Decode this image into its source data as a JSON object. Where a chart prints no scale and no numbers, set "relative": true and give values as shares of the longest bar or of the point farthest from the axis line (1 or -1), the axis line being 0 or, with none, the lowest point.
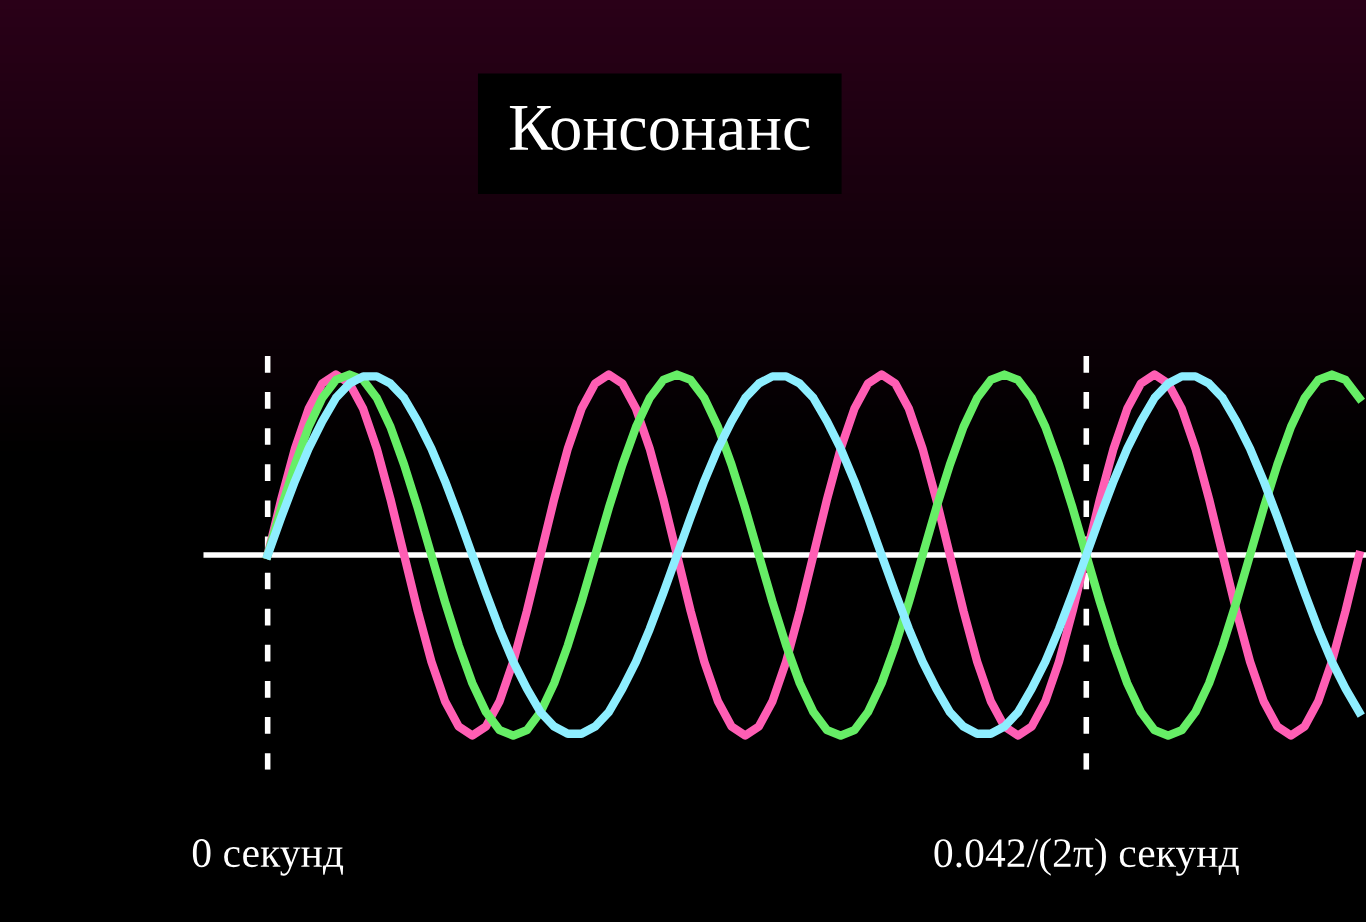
{
  "chart_data": {
    "type": "line",
    "title": "Консонанс",
    "relative": true,
    "grid": "x",
    "marker": "none",
    "line_style": "solid",
    "categories": [
      null,
      null,
      null,
      null,
      "0 секунд",
      null,
      null,
      null,
      null,
      null,
      null,
      null,
      null,
      null,
      null,
      null,
      null,
      null,
      null,
      null,
      null,
      null,
      null,
      null,
      null,
      null,
      null,
      null,
      null,
      null,
      null,
      null,
      null,
      null,
      null,
      null,
      null,
      null,
      null,
      null,
      null,
      null,
      null,
      null,
      null,
      null,
      null,
      null,
      null,
      null,
      null,
      null,
      null,
      null,
      null,
      null,
      null,
      null,
      null,
      null,
      null,
      null,
      null,
      null,
      "0.042/(2π) секунд",
      null,
      null,
      null,
      null,
      null,
      null,
      null,
      null,
      null,
      null,
      null,
      null,
      null,
      null,
      null,
      null,
      null,
      null,
      null,
      null
    ],
    "series": [
      {
        "color": "#ff5eb4",
        "values": [
          null,
          null,
          null,
          null,
          0,
          0.31,
          0.59,
          0.81,
          0.95,
          1,
          0.95,
          0.81,
          0.59,
          0.31,
          0,
          -0.31,
          -0.59,
          -0.81,
          -0.95,
          -1,
          -0.95,
          -0.81,
          -0.59,
          -0.31,
          0,
          0.31,
          0.59,
          0.81,
          0.95,
          1,
          0.95,
          0.81,
          0.59,
          0.31,
          0,
          -0.31,
          -0.59,
          -0.81,
          -0.95,
          -1,
          -0.95,
          -0.81,
          -0.59,
          -0.31,
          0,
          0.31,
          0.59,
          0.81,
          0.95,
          1,
          0.95,
          0.81,
          0.59,
          0.31,
          0,
          -0.31,
          -0.59,
          -0.81,
          -0.95,
          -1,
          -0.95,
          -0.81,
          -0.59,
          -0.31,
          0,
          0.31,
          0.59,
          0.81,
          0.95,
          1,
          0.95,
          0.81,
          0.59,
          0.31,
          0,
          -0.31,
          -0.59,
          -0.81,
          -0.95,
          -1,
          -0.95,
          -0.81,
          -0.59,
          -0.31,
          0
        ]
      },
      {
        "color": "#66ee66",
        "values": [
          null,
          null,
          null,
          null,
          0,
          0.26,
          0.5,
          0.71,
          0.87,
          0.97,
          1,
          0.97,
          0.87,
          0.71,
          0.5,
          0.26,
          0,
          -0.26,
          -0.5,
          -0.71,
          -0.87,
          -0.97,
          -1,
          -0.97,
          -0.87,
          -0.71,
          -0.5,
          -0.26,
          0,
          0.26,
          0.5,
          0.71,
          0.87,
          0.97,
          1,
          0.97,
          0.87,
          0.71,
          0.5,
          0.26,
          0,
          -0.26,
          -0.5,
          -0.71,
          -0.87,
          -0.97,
          -1,
          -0.97,
          -0.87,
          -0.71,
          -0.5,
          -0.26,
          0,
          0.26,
          0.5,
          0.71,
          0.87,
          0.97,
          1,
          0.97,
          0.87,
          0.71,
          0.5,
          0.26,
          0,
          -0.26,
          -0.5,
          -0.71,
          -0.87,
          -0.97,
          -1,
          -0.97,
          -0.87,
          -0.71,
          -0.5,
          -0.26,
          0,
          0.26,
          0.5,
          0.71,
          0.87,
          0.97,
          1,
          0.97,
          0.87
        ]
      },
      {
        "color": "#8eeeff",
        "values": [
          null,
          null,
          null,
          null,
          0,
          0.21,
          0.41,
          0.59,
          0.74,
          0.87,
          0.95,
          0.99,
          0.99,
          0.95,
          0.87,
          0.74,
          0.59,
          0.41,
          0.21,
          0,
          -0.21,
          -0.41,
          -0.59,
          -0.74,
          -0.87,
          -0.95,
          -0.99,
          -0.99,
          -0.95,
          -0.87,
          -0.74,
          -0.59,
          -0.41,
          -0.21,
          0,
          0.21,
          0.41,
          0.59,
          0.74,
          0.87,
          0.95,
          0.99,
          0.99,
          0.95,
          0.87,
          0.74,
          0.59,
          0.41,
          0.21,
          0,
          -0.21,
          -0.41,
          -0.59,
          -0.74,
          -0.87,
          -0.95,
          -0.99,
          -0.99,
          -0.95,
          -0.87,
          -0.74,
          -0.59,
          -0.41,
          -0.21,
          0,
          0.21,
          0.41,
          0.59,
          0.74,
          0.87,
          0.95,
          0.99,
          0.99,
          0.95,
          0.87,
          0.74,
          0.59,
          0.41,
          0.21,
          0,
          -0.21,
          -0.41,
          -0.59,
          -0.74,
          -0.87
        ]
      }
    ]
  }
}
